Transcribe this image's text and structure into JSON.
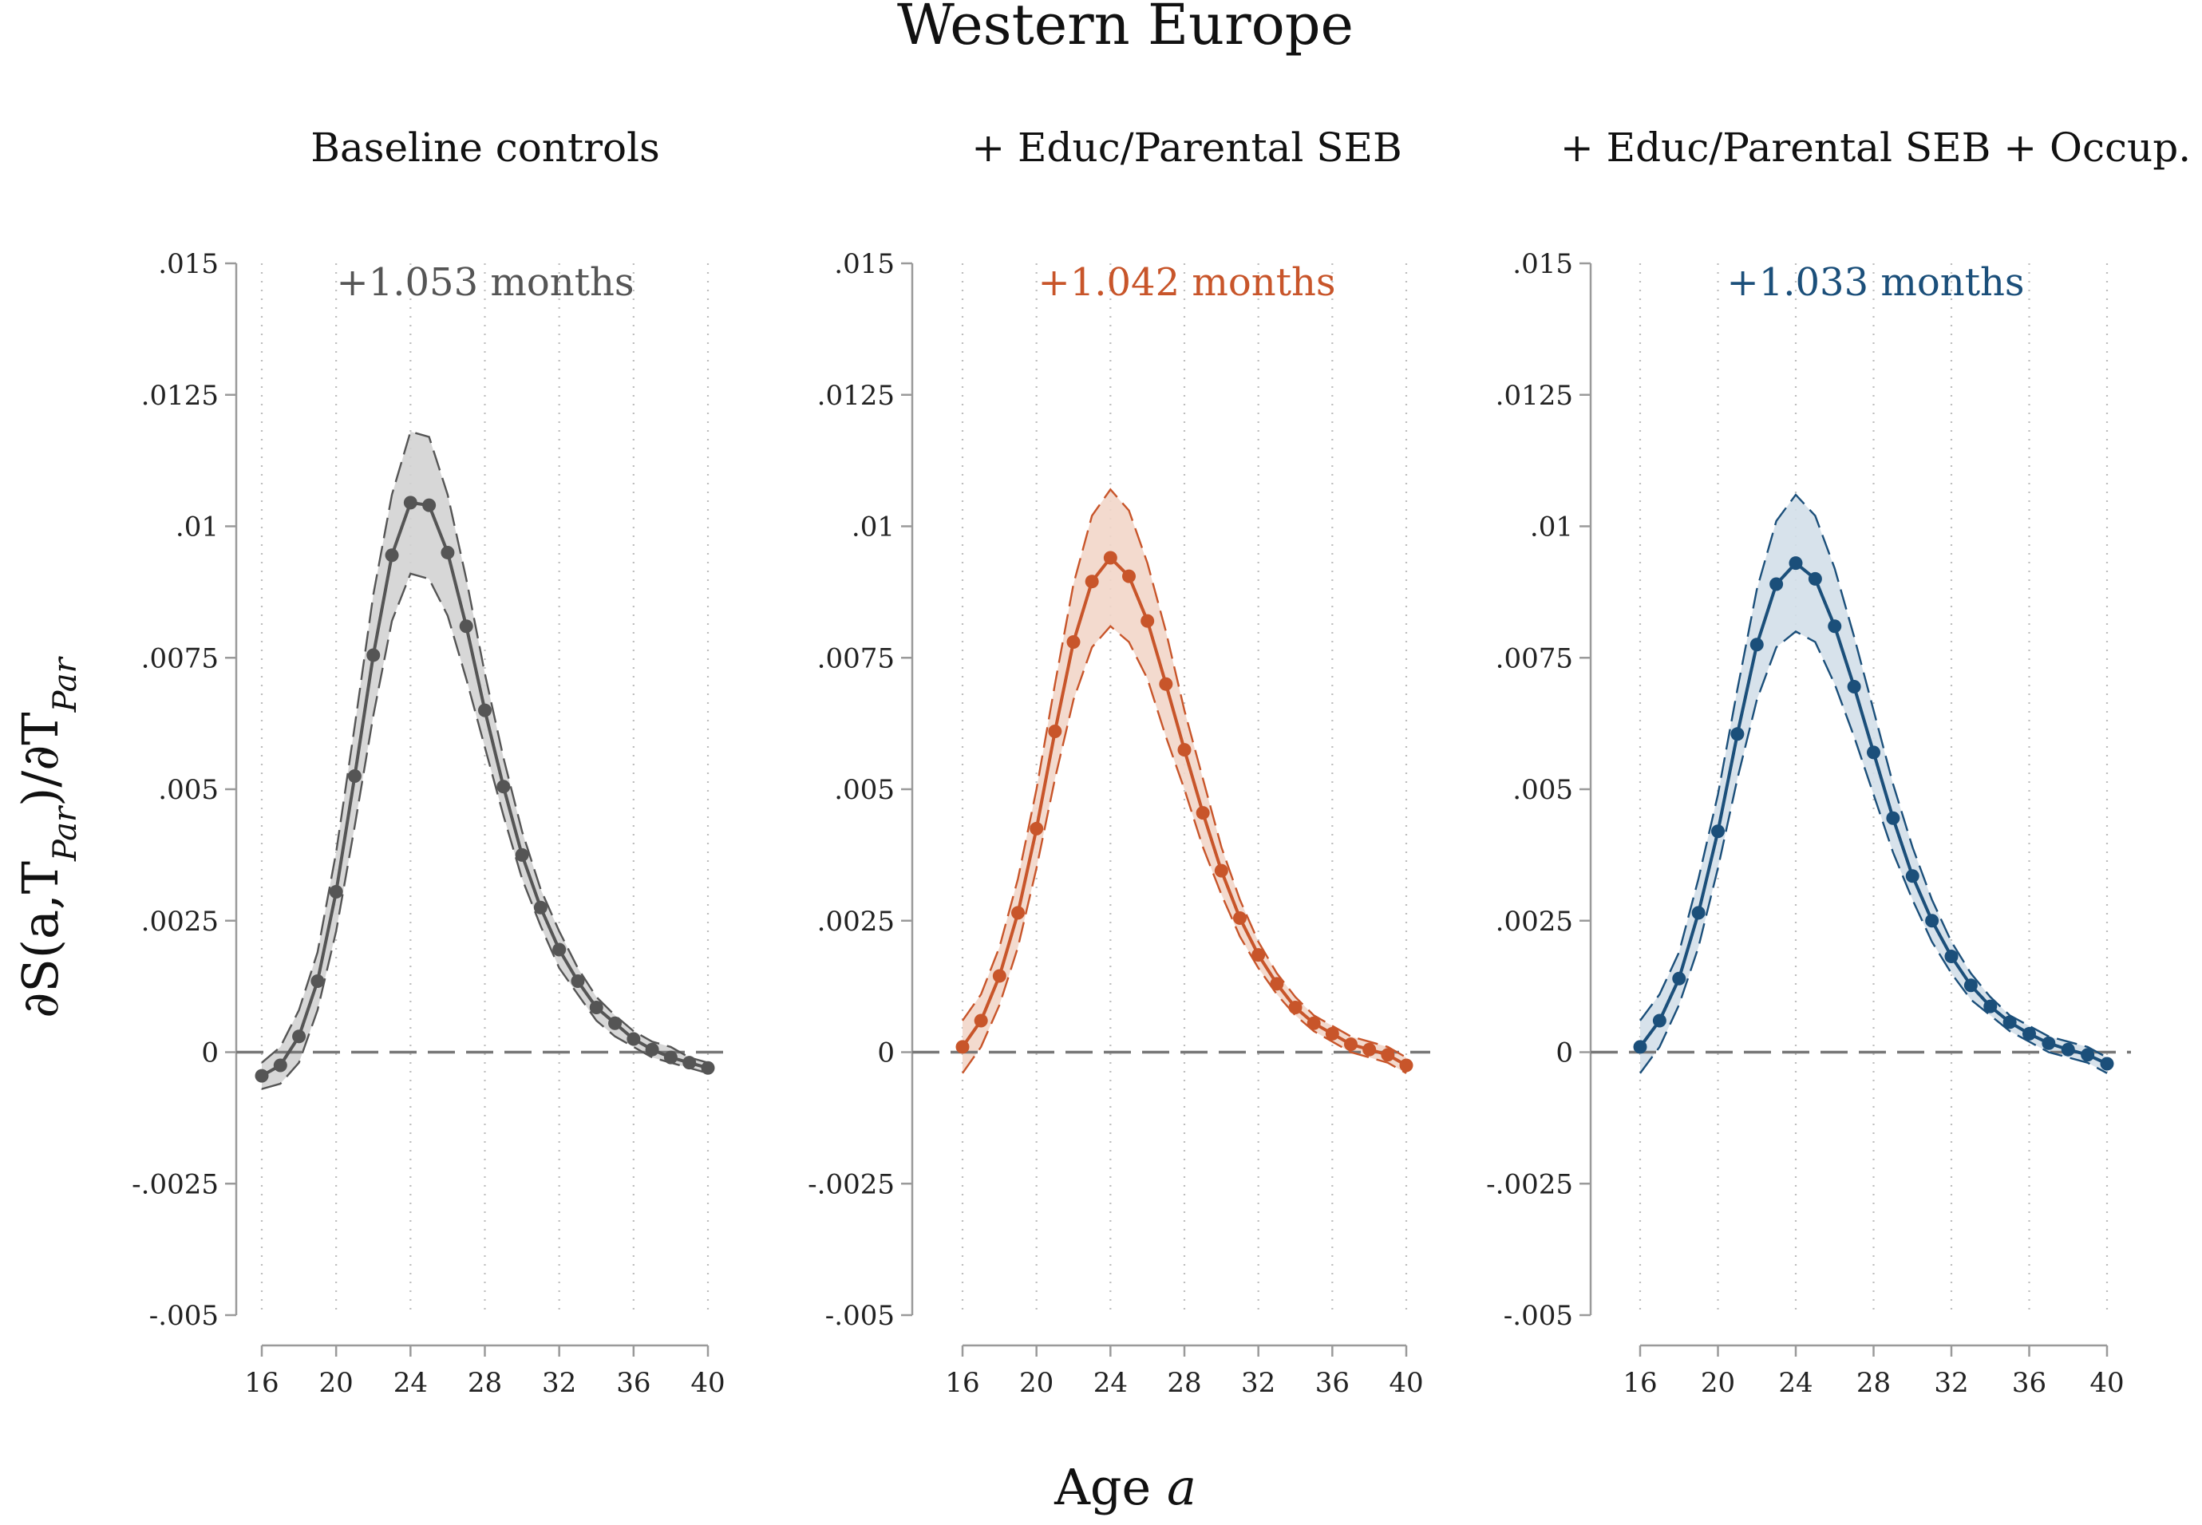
{
  "chart_data": {
    "type": "line",
    "title": "Western Europe",
    "xlabel": "Age",
    "xlabel_var": "a",
    "ylabel": "∂S(a,T_Par)/∂T_Par",
    "ylabel_parts": {
      "pre": "∂S(a,T",
      "sub1": "Par",
      "mid": ")/∂T",
      "sub2": "Par"
    },
    "xlim": [
      16,
      40
    ],
    "ylim": [
      -0.005,
      0.015
    ],
    "x_ticks": [
      16,
      20,
      24,
      28,
      32,
      36,
      40
    ],
    "y_ticks": [
      -0.005,
      -0.0025,
      0,
      0.0025,
      0.005,
      0.0075,
      0.01,
      0.0125,
      0.015
    ],
    "y_tick_labels": [
      "-.005",
      "-.0025",
      "0",
      ".0025",
      ".005",
      ".0075",
      ".01",
      ".0125",
      ".015"
    ],
    "grid": true,
    "reference_line_y": 0,
    "x": [
      16,
      17,
      18,
      19,
      20,
      21,
      22,
      23,
      24,
      25,
      26,
      27,
      28,
      29,
      30,
      31,
      32,
      33,
      34,
      35,
      36,
      37,
      38,
      39,
      40
    ],
    "panels": [
      {
        "title": "Baseline controls",
        "annotation": "+1.053 months",
        "color": "#555555",
        "band_color": "#d3d3d3",
        "estimate": [
          -0.00045,
          -0.00025,
          0.0003,
          0.00135,
          0.00305,
          0.00525,
          0.00755,
          0.00945,
          0.01045,
          0.0104,
          0.0095,
          0.0081,
          0.0065,
          0.00505,
          0.00375,
          0.00275,
          0.00195,
          0.00135,
          0.00085,
          0.00055,
          0.00025,
          5e-05,
          -0.0001,
          -0.0002,
          -0.0003
        ],
        "upper": [
          -0.0002,
          0.0001,
          0.0008,
          0.0019,
          0.0038,
          0.0062,
          0.0087,
          0.0106,
          0.0118,
          0.0117,
          0.0106,
          0.009,
          0.0072,
          0.0056,
          0.0042,
          0.0031,
          0.0023,
          0.0016,
          0.00105,
          0.0007,
          0.0004,
          0.0002,
          0.0001,
          -0.0001,
          -0.0002
        ],
        "lower": [
          -0.0007,
          -0.0006,
          -0.0002,
          0.0008,
          0.0023,
          0.0043,
          0.0064,
          0.0082,
          0.0091,
          0.009,
          0.0083,
          0.0071,
          0.0058,
          0.0045,
          0.0033,
          0.0024,
          0.0016,
          0.0011,
          0.0006,
          0.0003,
          0.0001,
          -0.0001,
          -0.0002,
          -0.0003,
          -0.0004
        ]
      },
      {
        "title": "+ Educ/Parental SEB",
        "annotation": "+1.042 months",
        "color": "#C8552A",
        "band_color": "#f2d6c9",
        "estimate": [
          0.0001,
          0.0006,
          0.00145,
          0.00265,
          0.00425,
          0.0061,
          0.0078,
          0.00895,
          0.0094,
          0.00905,
          0.0082,
          0.007,
          0.00575,
          0.00455,
          0.00345,
          0.00255,
          0.00185,
          0.0013,
          0.00085,
          0.00055,
          0.00035,
          0.00015,
          5e-05,
          -5e-05,
          -0.00025
        ],
        "upper": [
          0.0006,
          0.0011,
          0.002,
          0.0033,
          0.005,
          0.007,
          0.0089,
          0.0102,
          0.0107,
          0.0103,
          0.0093,
          0.008,
          0.0065,
          0.0052,
          0.0039,
          0.0029,
          0.0021,
          0.0015,
          0.00105,
          0.0007,
          0.0005,
          0.0003,
          0.0002,
          0.0001,
          -0.0001
        ],
        "lower": [
          -0.0004,
          0.0001,
          0.0009,
          0.002,
          0.0035,
          0.0052,
          0.0067,
          0.0077,
          0.0081,
          0.0078,
          0.0071,
          0.006,
          0.005,
          0.0039,
          0.003,
          0.0022,
          0.0016,
          0.0011,
          0.0007,
          0.0004,
          0.0002,
          0.0,
          -0.0001,
          -0.0002,
          -0.0004
        ]
      },
      {
        "title": "+ Educ/Parental SEB + Occup.",
        "annotation": "+1.033 months",
        "color": "#1B4F7A",
        "band_color": "#d3dfe9",
        "estimate": [
          0.0001,
          0.0006,
          0.0014,
          0.00265,
          0.0042,
          0.00605,
          0.00775,
          0.0089,
          0.0093,
          0.009,
          0.0081,
          0.00695,
          0.0057,
          0.00445,
          0.00335,
          0.0025,
          0.00182,
          0.00127,
          0.00087,
          0.00057,
          0.00035,
          0.00017,
          5e-05,
          -5e-05,
          -0.00022
        ],
        "upper": [
          0.0006,
          0.0011,
          0.0019,
          0.0033,
          0.0049,
          0.0069,
          0.0088,
          0.0101,
          0.0106,
          0.0102,
          0.0092,
          0.0079,
          0.0065,
          0.0051,
          0.0039,
          0.0029,
          0.0021,
          0.0015,
          0.00105,
          0.0007,
          0.0005,
          0.0003,
          0.0002,
          0.0001,
          -0.0001
        ],
        "lower": [
          -0.0004,
          0.0001,
          0.0009,
          0.002,
          0.0035,
          0.0052,
          0.0067,
          0.0077,
          0.008,
          0.0078,
          0.007,
          0.006,
          0.0049,
          0.0038,
          0.0029,
          0.0021,
          0.0015,
          0.001,
          0.0007,
          0.0004,
          0.0002,
          0.0,
          -0.0001,
          -0.0002,
          -0.0004
        ]
      }
    ]
  }
}
